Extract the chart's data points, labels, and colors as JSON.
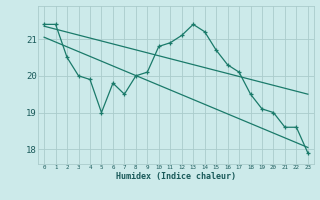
{
  "background_color": "#cceaea",
  "grid_color": "#aacccc",
  "line_color": "#1a7a6a",
  "x_label": "Humidex (Indice chaleur)",
  "x_ticks": [
    0,
    1,
    2,
    3,
    4,
    5,
    6,
    7,
    8,
    9,
    10,
    11,
    12,
    13,
    14,
    15,
    16,
    17,
    18,
    19,
    20,
    21,
    22,
    23
  ],
  "ylim": [
    17.6,
    21.9
  ],
  "yticks": [
    18,
    19,
    20,
    21
  ],
  "series1": [
    21.4,
    21.4,
    20.5,
    20.0,
    19.9,
    19.0,
    19.8,
    19.5,
    20.0,
    20.1,
    20.8,
    20.9,
    21.1,
    21.4,
    21.2,
    20.7,
    20.3,
    20.1,
    19.5,
    19.1,
    19.0,
    18.6,
    18.6,
    17.9
  ],
  "trend1_y_start": 21.35,
  "trend1_y_end": 19.5,
  "trend2_y_start": 21.05,
  "trend2_y_end": 18.05
}
